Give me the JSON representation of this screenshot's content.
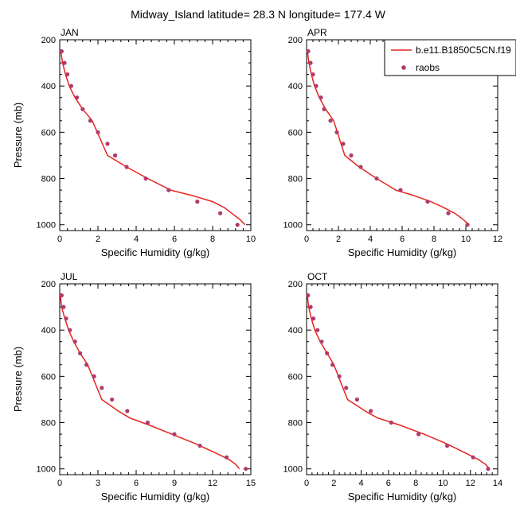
{
  "title": "Midway_Island  latitude= 28.3 N longitude= 177.4 W",
  "legend": {
    "model_label": "b.e11.B1850C5CN.f19",
    "obs_label": "raobs"
  },
  "colors": {
    "model": "#e8241e",
    "obs": "#b03a6a"
  },
  "chart_data": [
    {
      "type": "line",
      "panel": "JAN",
      "xlabel": "Specific Humidity (g/kg)",
      "ylabel": "Pressure (mb)",
      "xlim": [
        0,
        10
      ],
      "ylim": [
        200,
        1025
      ],
      "x_ticks": [
        0,
        2,
        4,
        6,
        8,
        10
      ],
      "y_ticks": [
        200,
        400,
        600,
        800,
        1000
      ],
      "series": [
        {
          "name": "b.e11.B1850C5CN.f19",
          "kind": "line",
          "x": [
            0.05,
            0.15,
            0.3,
            0.5,
            0.8,
            1.2,
            1.7,
            2.5,
            3.5,
            4.6,
            5.8,
            7.0,
            8.0,
            8.6,
            9.0,
            9.4,
            9.7
          ],
          "y": [
            250,
            300,
            350,
            400,
            450,
            500,
            550,
            700,
            750,
            800,
            850,
            875,
            900,
            925,
            950,
            975,
            1000
          ]
        },
        {
          "name": "raobs",
          "kind": "points",
          "x": [
            0.1,
            0.25,
            0.4,
            0.6,
            0.9,
            1.2,
            1.6,
            2.0,
            2.5,
            2.9,
            3.5,
            4.5,
            5.7,
            7.2,
            8.4,
            9.3
          ],
          "y": [
            250,
            300,
            350,
            400,
            450,
            500,
            550,
            600,
            650,
            700,
            750,
            800,
            850,
            900,
            950,
            1000
          ]
        }
      ]
    },
    {
      "type": "line",
      "panel": "APR",
      "xlabel": "Specific Humidity (g/kg)",
      "ylabel": "Pressure (mb)",
      "xlim": [
        0,
        12
      ],
      "ylim": [
        200,
        1025
      ],
      "x_ticks": [
        0,
        2,
        4,
        6,
        8,
        10,
        12
      ],
      "y_ticks": [
        200,
        400,
        600,
        800,
        1000
      ],
      "series": [
        {
          "name": "b.e11.B1850C5CN.f19",
          "kind": "line",
          "x": [
            0.05,
            0.15,
            0.3,
            0.5,
            0.8,
            1.2,
            1.7,
            2.4,
            3.3,
            4.4,
            5.6,
            6.8,
            7.8,
            8.6,
            9.3,
            9.8,
            10.2
          ],
          "y": [
            250,
            300,
            350,
            400,
            450,
            500,
            550,
            700,
            750,
            800,
            850,
            875,
            900,
            925,
            950,
            975,
            1000
          ]
        },
        {
          "name": "raobs",
          "kind": "points",
          "x": [
            0.1,
            0.25,
            0.4,
            0.6,
            0.9,
            1.1,
            1.5,
            1.9,
            2.3,
            2.8,
            3.4,
            4.4,
            5.9,
            7.6,
            8.9,
            10.1
          ],
          "y": [
            250,
            300,
            350,
            400,
            450,
            500,
            550,
            600,
            650,
            700,
            750,
            800,
            850,
            900,
            950,
            1000
          ]
        }
      ]
    },
    {
      "type": "line",
      "panel": "JUL",
      "xlabel": "Specific Humidity (g/kg)",
      "ylabel": "Pressure (mb)",
      "xlim": [
        0,
        15
      ],
      "ylim": [
        200,
        1025
      ],
      "x_ticks": [
        0,
        3,
        6,
        9,
        12,
        15
      ],
      "y_ticks": [
        200,
        400,
        600,
        800,
        1000
      ],
      "series": [
        {
          "name": "b.e11.B1850C5CN.f19",
          "kind": "line",
          "x": [
            0.05,
            0.15,
            0.4,
            0.7,
            1.1,
            1.6,
            2.2,
            3.3,
            4.6,
            5.5,
            7.0,
            8.8,
            10.6,
            12.2,
            13.3,
            13.8,
            14.1
          ],
          "y": [
            250,
            300,
            350,
            400,
            450,
            500,
            550,
            700,
            750,
            780,
            810,
            850,
            890,
            930,
            960,
            980,
            1000
          ]
        },
        {
          "name": "raobs",
          "kind": "points",
          "x": [
            0.15,
            0.3,
            0.5,
            0.8,
            1.2,
            1.6,
            2.1,
            2.7,
            3.3,
            4.1,
            5.3,
            6.9,
            9.0,
            11.0,
            13.1,
            14.6
          ],
          "y": [
            250,
            300,
            350,
            400,
            450,
            500,
            550,
            600,
            650,
            700,
            750,
            800,
            850,
            900,
            950,
            1000
          ]
        }
      ]
    },
    {
      "type": "line",
      "panel": "OCT",
      "xlabel": "Specific Humidity (g/kg)",
      "ylabel": "Pressure (mb)",
      "xlim": [
        0,
        14
      ],
      "ylim": [
        200,
        1025
      ],
      "x_ticks": [
        0,
        2,
        4,
        6,
        8,
        10,
        12,
        14
      ],
      "y_ticks": [
        200,
        400,
        600,
        800,
        1000
      ],
      "series": [
        {
          "name": "b.e11.B1850C5CN.f19",
          "kind": "line",
          "x": [
            0.05,
            0.15,
            0.35,
            0.6,
            1.0,
            1.5,
            2.0,
            3.0,
            4.3,
            5.2,
            6.8,
            8.6,
            10.2,
            11.6,
            12.6,
            13.1,
            13.4
          ],
          "y": [
            250,
            300,
            350,
            400,
            450,
            500,
            550,
            700,
            750,
            780,
            810,
            850,
            890,
            930,
            960,
            980,
            1000
          ]
        },
        {
          "name": "raobs",
          "kind": "points",
          "x": [
            0.1,
            0.3,
            0.5,
            0.8,
            1.1,
            1.5,
            1.9,
            2.4,
            2.9,
            3.7,
            4.7,
            6.2,
            8.2,
            10.3,
            12.2,
            13.3
          ],
          "y": [
            250,
            300,
            350,
            400,
            450,
            500,
            550,
            600,
            650,
            700,
            750,
            800,
            850,
            900,
            950,
            1000
          ]
        }
      ]
    }
  ]
}
